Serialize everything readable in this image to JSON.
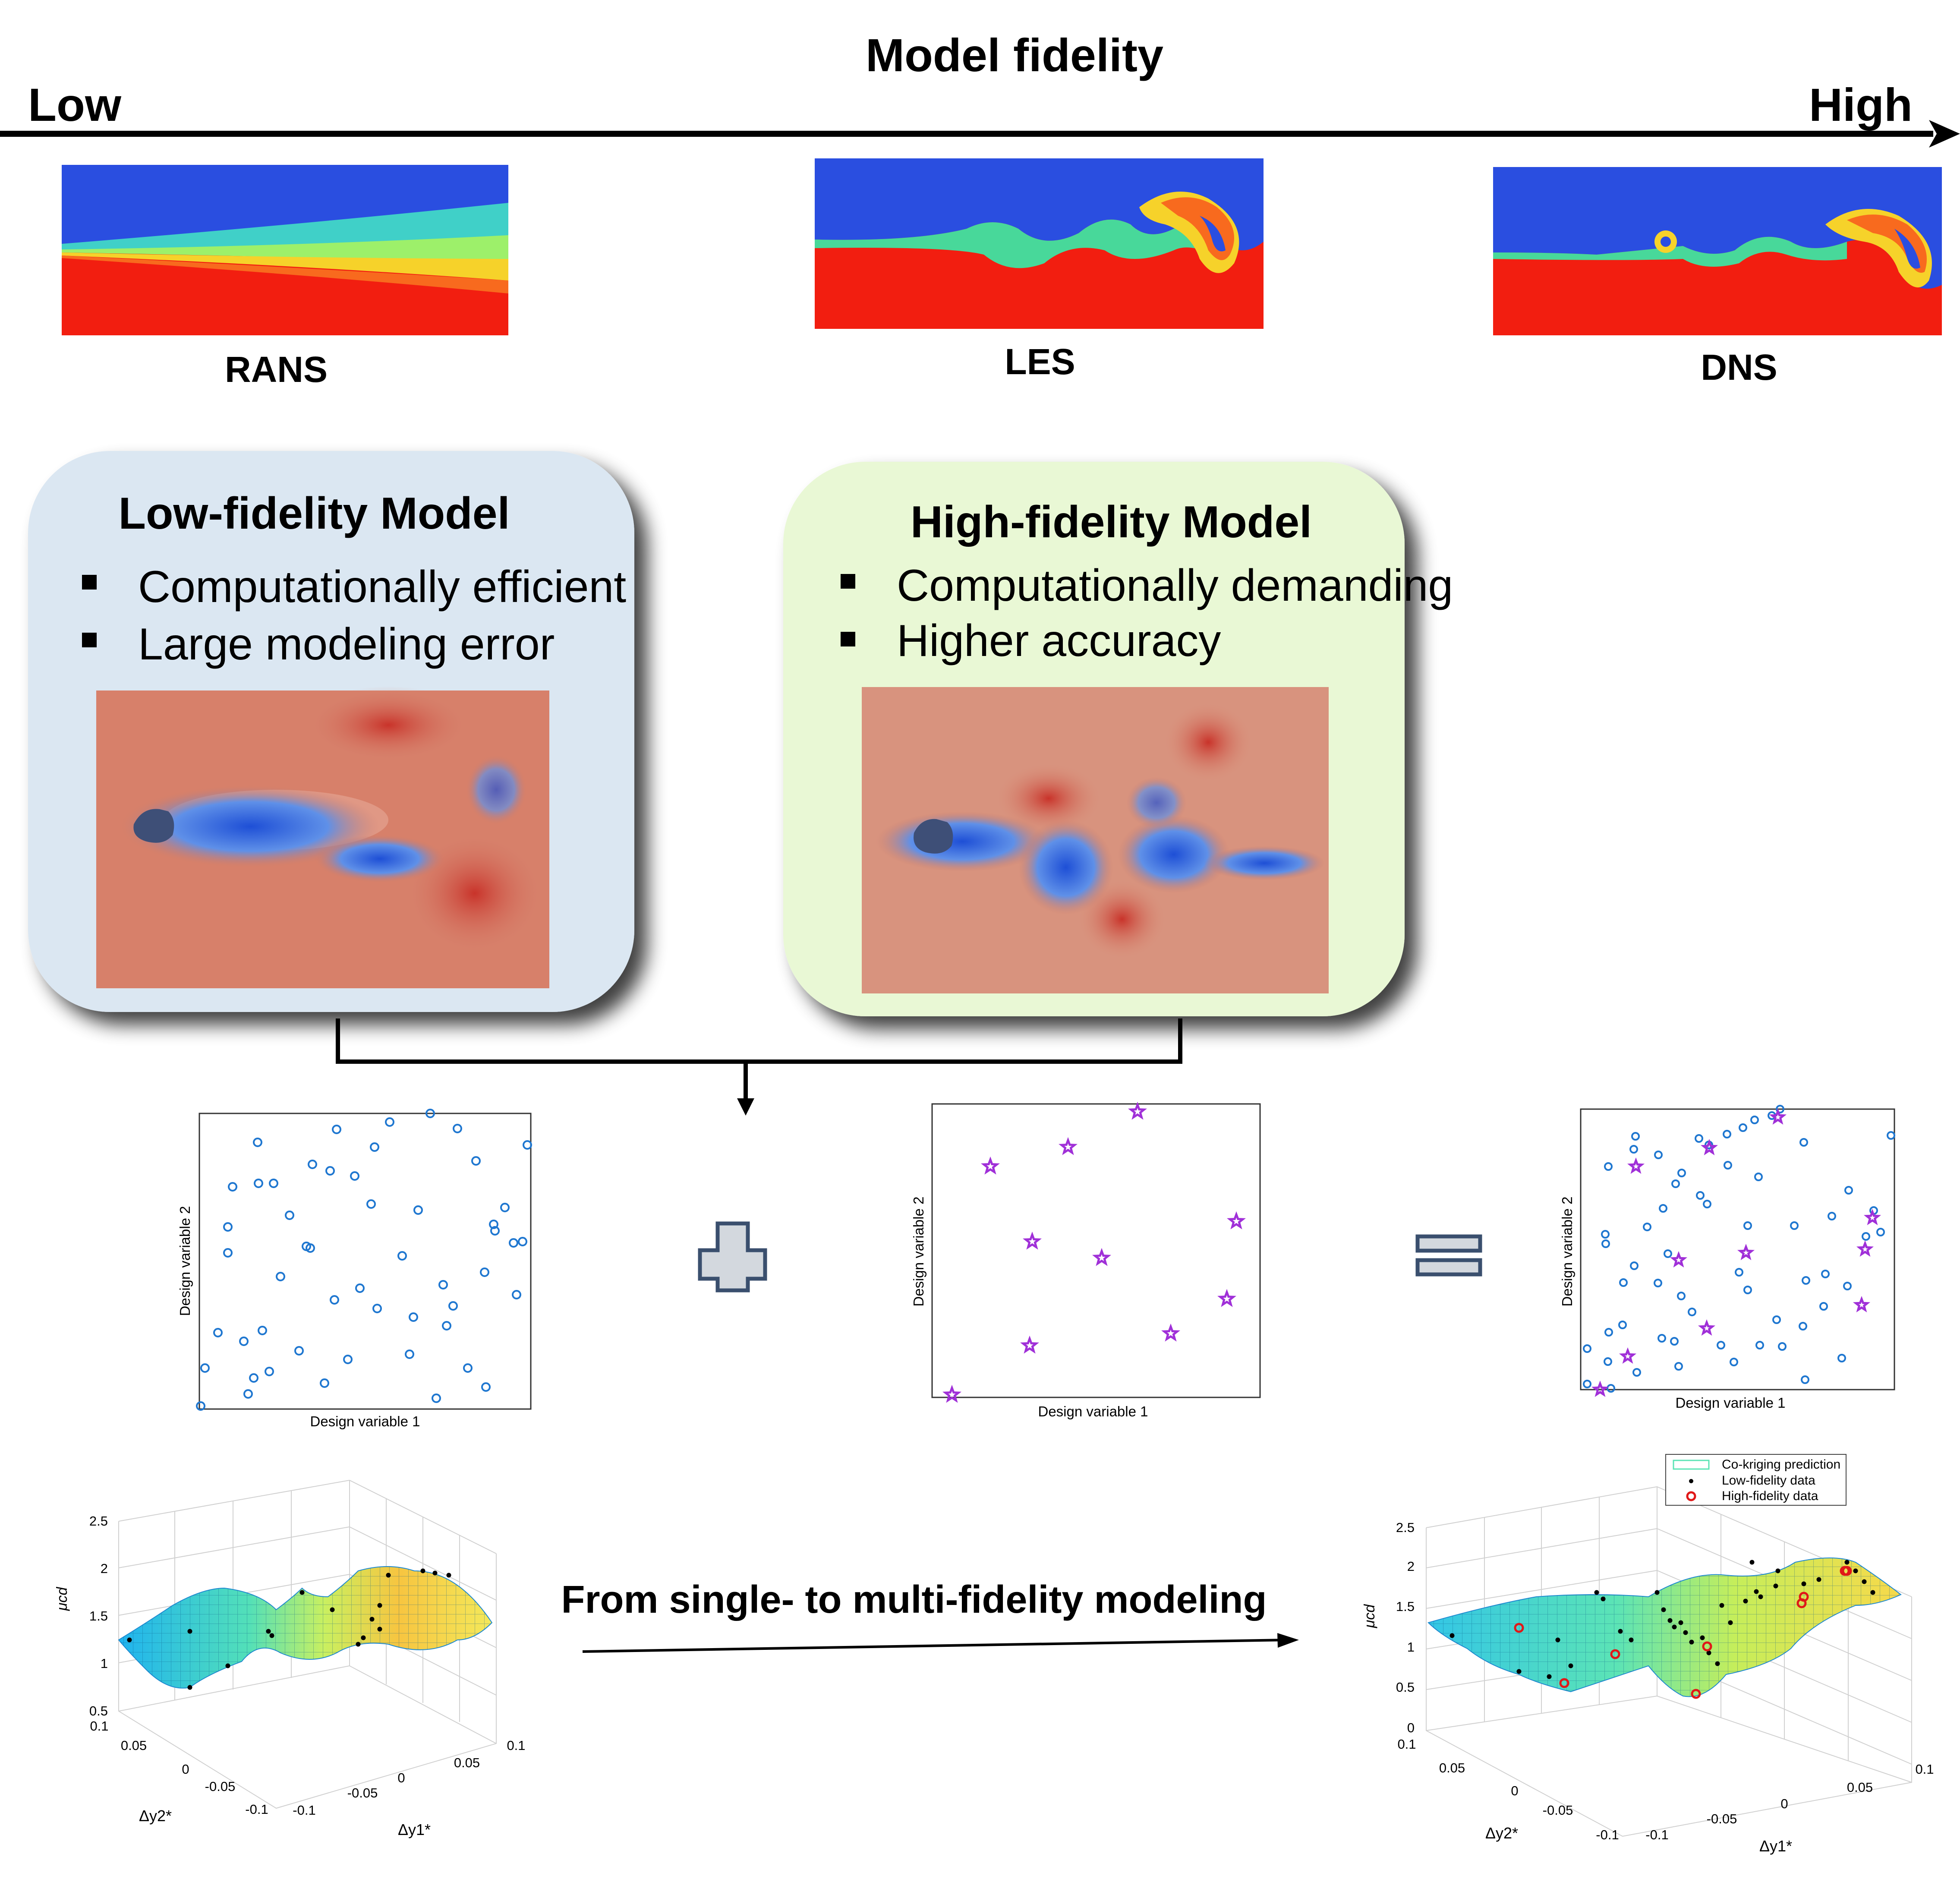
{
  "axis": {
    "title": "Model fidelity",
    "low": "Low",
    "high": "High"
  },
  "simulations": [
    {
      "label": "RANS"
    },
    {
      "label": "LES"
    },
    {
      "label": "DNS"
    }
  ],
  "low_fidelity_box": {
    "title": "Low-fidelity Model",
    "bullets": [
      "Computationally efficient",
      "Large modeling error"
    ]
  },
  "high_fidelity_box": {
    "title": "High-fidelity Model",
    "bullets": [
      "Computationally demanding",
      "Higher accuracy"
    ]
  },
  "scatter_plots": [
    {
      "xlabel": "Design variable 1",
      "ylabel": "Design variable 2"
    },
    {
      "xlabel": "Design variable 1",
      "ylabel": "Design variable 2"
    },
    {
      "xlabel": "Design variable 1",
      "ylabel": "Design variable 2"
    }
  ],
  "modeling_arrow_label": "From single- to multi-fidelity modeling",
  "surface_single": {
    "zlabel": "μcd",
    "zticks": [
      "2.5",
      "2",
      "1.5",
      "1",
      "0.5"
    ],
    "yticks": [
      "0.1",
      "0.05",
      "0",
      "-0.05",
      "-0.1"
    ],
    "xticks": [
      "-0.1",
      "-0.05",
      "0",
      "0.05",
      "0.1"
    ],
    "ylabel": "Δy2*",
    "xlabel": "Δy1*"
  },
  "surface_multi": {
    "zlabel": "μcd",
    "zticks": [
      "2.5",
      "2",
      "1.5",
      "1",
      "0.5",
      "0"
    ],
    "yticks": [
      "0.1",
      "0.05",
      "0",
      "-0.05",
      "-0.1"
    ],
    "xticks": [
      "-0.1",
      "-0.05",
      "0",
      "0.05",
      "0.1"
    ],
    "ylabel": "Δy2*",
    "xlabel": "Δy1*",
    "legend": [
      "Co-kriging prediction",
      "Low-fidelity data",
      "High-fidelity data"
    ]
  },
  "colors": {
    "low_box": "#dbe7f2",
    "high_box": "#e9f8d5",
    "circle_marker": "#1f77d0",
    "star_marker": "#a030d8",
    "field_blue": "#2a4ee0",
    "field_red": "#f21e10"
  }
}
